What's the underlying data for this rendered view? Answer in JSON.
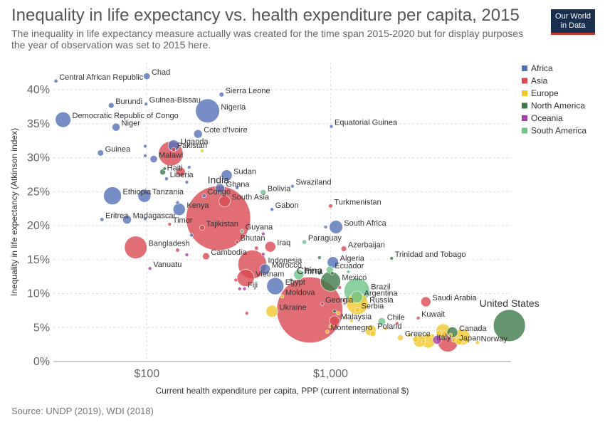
{
  "header": {
    "title": "Inequality in life expectancy vs. health expenditure per capita, 2015",
    "subtitle": "The inequality in life expectancy measure actually was created for the time span 2015-2020 but for display purposes the year of observation was set to 2015 here.",
    "logo_line1": "Our World",
    "logo_line2": "in Data"
  },
  "footer": {
    "source": "Source: UNDP (2019), WDI (2018)"
  },
  "colors": {
    "Africa": "#5571b8",
    "Asia": "#d84a51",
    "Europe": "#f0c92e",
    "North America": "#3d7a4a",
    "Oceania": "#a83ea8",
    "South America": "#6fc489"
  },
  "chart_data": {
    "type": "scatter",
    "xlabel": "Current health expenditure per capita, PPP (current international $)",
    "ylabel": "Inequality in life expectancy (Atkinson index)",
    "xscale": "log",
    "xlim": [
      31,
      9600
    ],
    "ylim": [
      0,
      44
    ],
    "grid": true,
    "legend_position": "top-right",
    "x_ticks": [
      {
        "value": 100,
        "label": "$100"
      },
      {
        "value": 1000,
        "label": "$1,000"
      }
    ],
    "y_ticks": [
      {
        "value": 0,
        "label": "0%"
      },
      {
        "value": 5,
        "label": "5%"
      },
      {
        "value": 10,
        "label": "10%"
      },
      {
        "value": 15,
        "label": "15%"
      },
      {
        "value": 20,
        "label": "20%"
      },
      {
        "value": 25,
        "label": "25%"
      },
      {
        "value": 30,
        "label": "30%"
      },
      {
        "value": 35,
        "label": "35%"
      },
      {
        "value": 40,
        "label": "40%"
      }
    ],
    "legend": [
      "Africa",
      "Asia",
      "Europe",
      "North America",
      "Oceania",
      "South America"
    ],
    "points": [
      {
        "label": "Central African Republic",
        "x": 32,
        "y": 41.3,
        "pop": 4.6,
        "region": "Africa"
      },
      {
        "label": "Chad",
        "x": 100,
        "y": 42.0,
        "pop": 14,
        "region": "Africa"
      },
      {
        "label": "Sierra Leone",
        "x": 255,
        "y": 39.3,
        "pop": 7.2,
        "region": "Africa"
      },
      {
        "label": "Burundi",
        "x": 64,
        "y": 37.7,
        "pop": 10,
        "region": "Africa"
      },
      {
        "label": "Guinea-Bissau",
        "x": 99,
        "y": 37.9,
        "pop": 1.8,
        "region": "Africa"
      },
      {
        "label": "Nigeria",
        "x": 214,
        "y": 36.9,
        "pop": 181,
        "region": "Africa"
      },
      {
        "label": "Democratic Republic of Congo",
        "x": 35,
        "y": 35.6,
        "pop": 76,
        "region": "Africa"
      },
      {
        "label": "Niger",
        "x": 68,
        "y": 34.5,
        "pop": 20,
        "region": "Africa"
      },
      {
        "label": "Equatorial Guinea",
        "x": 1010,
        "y": 34.6,
        "pop": 1.2,
        "region": "Africa"
      },
      {
        "label": "Cote d'Ivoire",
        "x": 190,
        "y": 33.5,
        "pop": 23,
        "region": "Africa"
      },
      {
        "label": "Uganda",
        "x": 140,
        "y": 31.8,
        "pop": 40,
        "region": "Africa"
      },
      {
        "label": "Pakistan",
        "x": 140,
        "y": 31.2,
        "pop": 5,
        "region": "Asia"
      },
      {
        "label": "Guinea",
        "x": 56,
        "y": 30.7,
        "pop": 12,
        "region": "Africa"
      },
      {
        "label": "Malawi",
        "x": 109,
        "y": 29.8,
        "pop": 17,
        "region": "Africa"
      },
      {
        "label": "",
        "x": 135,
        "y": 30.6,
        "pop": 189,
        "region": "Asia"
      },
      {
        "label": "Haiti",
        "x": 122,
        "y": 27.9,
        "pop": 10.7,
        "region": "North America"
      },
      {
        "label": "Liberia",
        "x": 128,
        "y": 26.9,
        "pop": 4.5,
        "region": "Africa"
      },
      {
        "label": "Sudan",
        "x": 272,
        "y": 27.4,
        "pop": 38,
        "region": "Africa"
      },
      {
        "label": "",
        "x": 153,
        "y": 27.9,
        "pop": 26,
        "region": "Asia"
      },
      {
        "label": "Ghana",
        "x": 250,
        "y": 25.5,
        "pop": 27,
        "region": "Africa"
      },
      {
        "label": "Bolivia",
        "x": 430,
        "y": 24.9,
        "pop": 10.7,
        "region": "South America"
      },
      {
        "label": "Swaziland",
        "x": 620,
        "y": 25.8,
        "pop": 1.1,
        "region": "Africa"
      },
      {
        "label": "Ethiopia",
        "x": 65,
        "y": 24.4,
        "pop": 100,
        "region": "Africa"
      },
      {
        "label": "Tanzania",
        "x": 97,
        "y": 24.4,
        "pop": 53,
        "region": "Africa"
      },
      {
        "label": "Congo",
        "x": 205,
        "y": 24.4,
        "pop": 4.9,
        "region": "Africa"
      },
      {
        "label": "India",
        "x": 245,
        "y": 21.1,
        "pop": 1311,
        "region": "Asia"
      },
      {
        "label": "South Asia",
        "x": 265,
        "y": 23.6,
        "pop": 40,
        "region": "Asia"
      },
      {
        "label": "Turkmenistan",
        "x": 1000,
        "y": 22.9,
        "pop": 5.6,
        "region": "Asia"
      },
      {
        "label": "Kenya",
        "x": 150,
        "y": 22.4,
        "pop": 47,
        "region": "Africa"
      },
      {
        "label": "Gabon",
        "x": 480,
        "y": 22.4,
        "pop": 1.9,
        "region": "Africa"
      },
      {
        "label": "Eritrea",
        "x": 57,
        "y": 20.9,
        "pop": 4.8,
        "region": "Africa"
      },
      {
        "label": "Madagascar",
        "x": 78,
        "y": 20.9,
        "pop": 24,
        "region": "Africa"
      },
      {
        "label": "Timor",
        "x": 133,
        "y": 20.2,
        "pop": 1.2,
        "region": "Asia"
      },
      {
        "label": "Tajikistan",
        "x": 200,
        "y": 19.7,
        "pop": 8.5,
        "region": "Asia"
      },
      {
        "label": "South Africa",
        "x": 1070,
        "y": 19.8,
        "pop": 55,
        "region": "Africa"
      },
      {
        "label": "Guyana",
        "x": 330,
        "y": 19.2,
        "pop": 0.8,
        "region": "South America"
      },
      {
        "label": "Bhutan",
        "x": 310,
        "y": 17.6,
        "pop": 0.8,
        "region": "Asia"
      },
      {
        "label": "Iraq",
        "x": 470,
        "y": 16.9,
        "pop": 36,
        "region": "Asia"
      },
      {
        "label": "Paraguay",
        "x": 720,
        "y": 17.6,
        "pop": 6.7,
        "region": "South America"
      },
      {
        "label": "Azerbaijan",
        "x": 1180,
        "y": 16.6,
        "pop": 9.6,
        "region": "Asia"
      },
      {
        "label": "Bangladesh",
        "x": 87,
        "y": 16.8,
        "pop": 160,
        "region": "Asia"
      },
      {
        "label": "Cambodia",
        "x": 210,
        "y": 15.5,
        "pop": 15.5,
        "region": "Asia"
      },
      {
        "label": "Indonesia",
        "x": 375,
        "y": 14.3,
        "pop": 258,
        "region": "Asia"
      },
      {
        "label": "Algeria",
        "x": 1030,
        "y": 14.6,
        "pop": 40,
        "region": "Africa"
      },
      {
        "label": "Trinidad and Tobago",
        "x": 2150,
        "y": 15.2,
        "pop": 1.4,
        "region": "North America"
      },
      {
        "label": "Vanuatu",
        "x": 104,
        "y": 13.7,
        "pop": 0.3,
        "region": "Oceania"
      },
      {
        "label": "Morocco",
        "x": 440,
        "y": 13.6,
        "pop": 34,
        "region": "Africa"
      },
      {
        "label": "Ecuador",
        "x": 990,
        "y": 13.5,
        "pop": 16,
        "region": "South America"
      },
      {
        "label": "Vietnam",
        "x": 345,
        "y": 12.3,
        "pop": 92,
        "region": "Asia"
      },
      {
        "label": "Peru",
        "x": 670,
        "y": 12.8,
        "pop": 31,
        "region": "South America"
      },
      {
        "label": "Mexico",
        "x": 1000,
        "y": 11.8,
        "pop": 125,
        "region": "North America"
      },
      {
        "label": "Egypt",
        "x": 500,
        "y": 11.1,
        "pop": 92,
        "region": "Africa"
      },
      {
        "label": "Fiji",
        "x": 340,
        "y": 10.7,
        "pop": 0.9,
        "region": "Oceania"
      },
      {
        "label": "Brazil",
        "x": 1390,
        "y": 10.4,
        "pop": 205,
        "region": "South America"
      },
      {
        "label": "Moldova",
        "x": 545,
        "y": 9.6,
        "pop": 3.6,
        "region": "Europe"
      },
      {
        "label": "China",
        "x": 770,
        "y": 7.6,
        "pop": 1371,
        "region": "Asia"
      },
      {
        "label": "Argentina",
        "x": 1390,
        "y": 9.5,
        "pop": 43,
        "region": "South America"
      },
      {
        "label": "Russia",
        "x": 1400,
        "y": 8.5,
        "pop": 144,
        "region": "Europe"
      },
      {
        "label": "Georgia",
        "x": 900,
        "y": 8.5,
        "pop": 3.7,
        "region": "Asia"
      },
      {
        "label": "Serbia",
        "x": 1400,
        "y": 7.6,
        "pop": 7.1,
        "region": "Europe"
      },
      {
        "label": "Saudi Arabia",
        "x": 3300,
        "y": 8.8,
        "pop": 31,
        "region": "Asia"
      },
      {
        "label": "Ukraine",
        "x": 480,
        "y": 7.4,
        "pop": 45,
        "region": "Europe"
      },
      {
        "label": "Malaysia",
        "x": 1050,
        "y": 6.0,
        "pop": 30,
        "region": "Asia"
      },
      {
        "label": "Chile",
        "x": 1900,
        "y": 5.9,
        "pop": 18,
        "region": "South America"
      },
      {
        "label": "Kuwait",
        "x": 3000,
        "y": 6.4,
        "pop": 3.9,
        "region": "Asia"
      },
      {
        "label": "United States",
        "x": 9400,
        "y": 5.3,
        "pop": 321,
        "region": "North America"
      },
      {
        "label": "Poland",
        "x": 1650,
        "y": 4.6,
        "pop": 38,
        "region": "Europe"
      },
      {
        "label": "Montenegro",
        "x": 960,
        "y": 4.4,
        "pop": 0.6,
        "region": "Europe"
      },
      {
        "label": "Canada",
        "x": 4600,
        "y": 4.3,
        "pop": 36,
        "region": "North America"
      },
      {
        "label": "Greece",
        "x": 2400,
        "y": 3.5,
        "pop": 10.8,
        "region": "Europe"
      },
      {
        "label": "Italy",
        "x": 3400,
        "y": 3.0,
        "pop": 60,
        "region": "Europe"
      },
      {
        "label": "Japan",
        "x": 4350,
        "y": 2.9,
        "pop": 127,
        "region": "Asia"
      },
      {
        "label": "Norway",
        "x": 6300,
        "y": 2.8,
        "pop": 5.2,
        "region": "Europe"
      },
      {
        "label": "",
        "x": 125,
        "y": 28.4,
        "pop": 1.0,
        "region": "North America"
      },
      {
        "label": "",
        "x": 98,
        "y": 31.7,
        "pop": 2.0,
        "region": "Africa"
      },
      {
        "label": "",
        "x": 98,
        "y": 30.3,
        "pop": 1.5,
        "region": "Africa"
      },
      {
        "label": "",
        "x": 165,
        "y": 26.4,
        "pop": 2.5,
        "region": "Africa"
      },
      {
        "label": "",
        "x": 170,
        "y": 28.6,
        "pop": 2.5,
        "region": "Africa"
      },
      {
        "label": "",
        "x": 310,
        "y": 25.6,
        "pop": 1.0,
        "region": "Africa"
      },
      {
        "label": "",
        "x": 147,
        "y": 23.4,
        "pop": 1.0,
        "region": "Africa"
      },
      {
        "label": "",
        "x": 98,
        "y": 21.0,
        "pop": 1.0,
        "region": "Africa"
      },
      {
        "label": "",
        "x": 175,
        "y": 18.6,
        "pop": 1.0,
        "region": "Africa"
      },
      {
        "label": "",
        "x": 940,
        "y": 19.8,
        "pop": 1.0,
        "region": "Africa"
      },
      {
        "label": "",
        "x": 200,
        "y": 31.0,
        "pop": 1.0,
        "region": "Europe"
      },
      {
        "label": "",
        "x": 147,
        "y": 16.4,
        "pop": 5.0,
        "region": "Asia"
      },
      {
        "label": "",
        "x": 395,
        "y": 16.7,
        "pop": 5.0,
        "region": "Asia"
      },
      {
        "label": "",
        "x": 165,
        "y": 15.7,
        "pop": 0.3,
        "region": "Oceania"
      },
      {
        "label": "",
        "x": 430,
        "y": 18.8,
        "pop": 0.5,
        "region": "Oceania"
      },
      {
        "label": "",
        "x": 430,
        "y": 15.8,
        "pop": 0.5,
        "region": "Oceania"
      },
      {
        "label": "",
        "x": 870,
        "y": 15.3,
        "pop": 0.8,
        "region": "North America"
      },
      {
        "label": "",
        "x": 870,
        "y": 13.0,
        "pop": 0.8,
        "region": "North America"
      },
      {
        "label": "",
        "x": 610,
        "y": 12.0,
        "pop": 1.0,
        "region": "North America"
      },
      {
        "label": "",
        "x": 305,
        "y": 12.0,
        "pop": 1.0,
        "region": "Asia"
      },
      {
        "label": "",
        "x": 320,
        "y": 10.7,
        "pop": 1.0,
        "region": "Oceania"
      },
      {
        "label": "",
        "x": 1250,
        "y": 13.2,
        "pop": 1.0,
        "region": "South America"
      },
      {
        "label": "",
        "x": 1020,
        "y": 13.0,
        "pop": 0.5,
        "region": "North America"
      },
      {
        "label": "",
        "x": 1120,
        "y": 10.9,
        "pop": 1.0,
        "region": "Asia"
      },
      {
        "label": "",
        "x": 350,
        "y": 7.1,
        "pop": 2.0,
        "region": "Asia"
      },
      {
        "label": "",
        "x": 1180,
        "y": 9.0,
        "pop": 3.0,
        "region": "Asia"
      },
      {
        "label": "",
        "x": 1100,
        "y": 7.1,
        "pop": 1.0,
        "region": "Europe"
      },
      {
        "label": "",
        "x": 1200,
        "y": 6.5,
        "pop": 1.0,
        "region": "Europe"
      },
      {
        "label": "",
        "x": 1300,
        "y": 6.0,
        "pop": 1.0,
        "region": "Europe"
      },
      {
        "label": "",
        "x": 1050,
        "y": 7.4,
        "pop": 0.5,
        "region": "North America"
      },
      {
        "label": "",
        "x": 1000,
        "y": 5.2,
        "pop": 3.0,
        "region": "Europe"
      },
      {
        "label": "",
        "x": 1600,
        "y": 5.0,
        "pop": 2.0,
        "region": "Europe"
      },
      {
        "label": "",
        "x": 1700,
        "y": 4.1,
        "pop": 10.0,
        "region": "Europe"
      },
      {
        "label": "",
        "x": 2000,
        "y": 4.8,
        "pop": 4.0,
        "region": "Europe"
      },
      {
        "label": "",
        "x": 2300,
        "y": 5.6,
        "pop": 2.0,
        "region": "Asia"
      },
      {
        "label": "",
        "x": 2700,
        "y": 3.9,
        "pop": 2.0,
        "region": "Europe"
      },
      {
        "label": "",
        "x": 2900,
        "y": 3.3,
        "pop": 10.0,
        "region": "Europe"
      },
      {
        "label": "",
        "x": 3050,
        "y": 3.0,
        "pop": 46,
        "region": "Europe"
      },
      {
        "label": "",
        "x": 3600,
        "y": 3.8,
        "pop": 3.0,
        "region": "Europe"
      },
      {
        "label": "",
        "x": 3900,
        "y": 4.2,
        "pop": 10.0,
        "region": "Europe"
      },
      {
        "label": "",
        "x": 4100,
        "y": 4.5,
        "pop": 64,
        "region": "Europe"
      },
      {
        "label": "",
        "x": 4700,
        "y": 3.2,
        "pop": 8.0,
        "region": "Europe"
      },
      {
        "label": "",
        "x": 5000,
        "y": 3.0,
        "pop": 17,
        "region": "Europe"
      },
      {
        "label": "",
        "x": 5200,
        "y": 3.6,
        "pop": 81,
        "region": "Europe"
      },
      {
        "label": "",
        "x": 5500,
        "y": 3.1,
        "pop": 8.3,
        "region": "Europe"
      },
      {
        "label": "",
        "x": 4500,
        "y": 3.9,
        "pop": 4.6,
        "region": "Europe"
      },
      {
        "label": "",
        "x": 3200,
        "y": 3.0,
        "pop": 2.0,
        "region": "Europe"
      },
      {
        "label": "",
        "x": 3800,
        "y": 3.2,
        "pop": 24,
        "region": "Oceania"
      }
    ]
  }
}
